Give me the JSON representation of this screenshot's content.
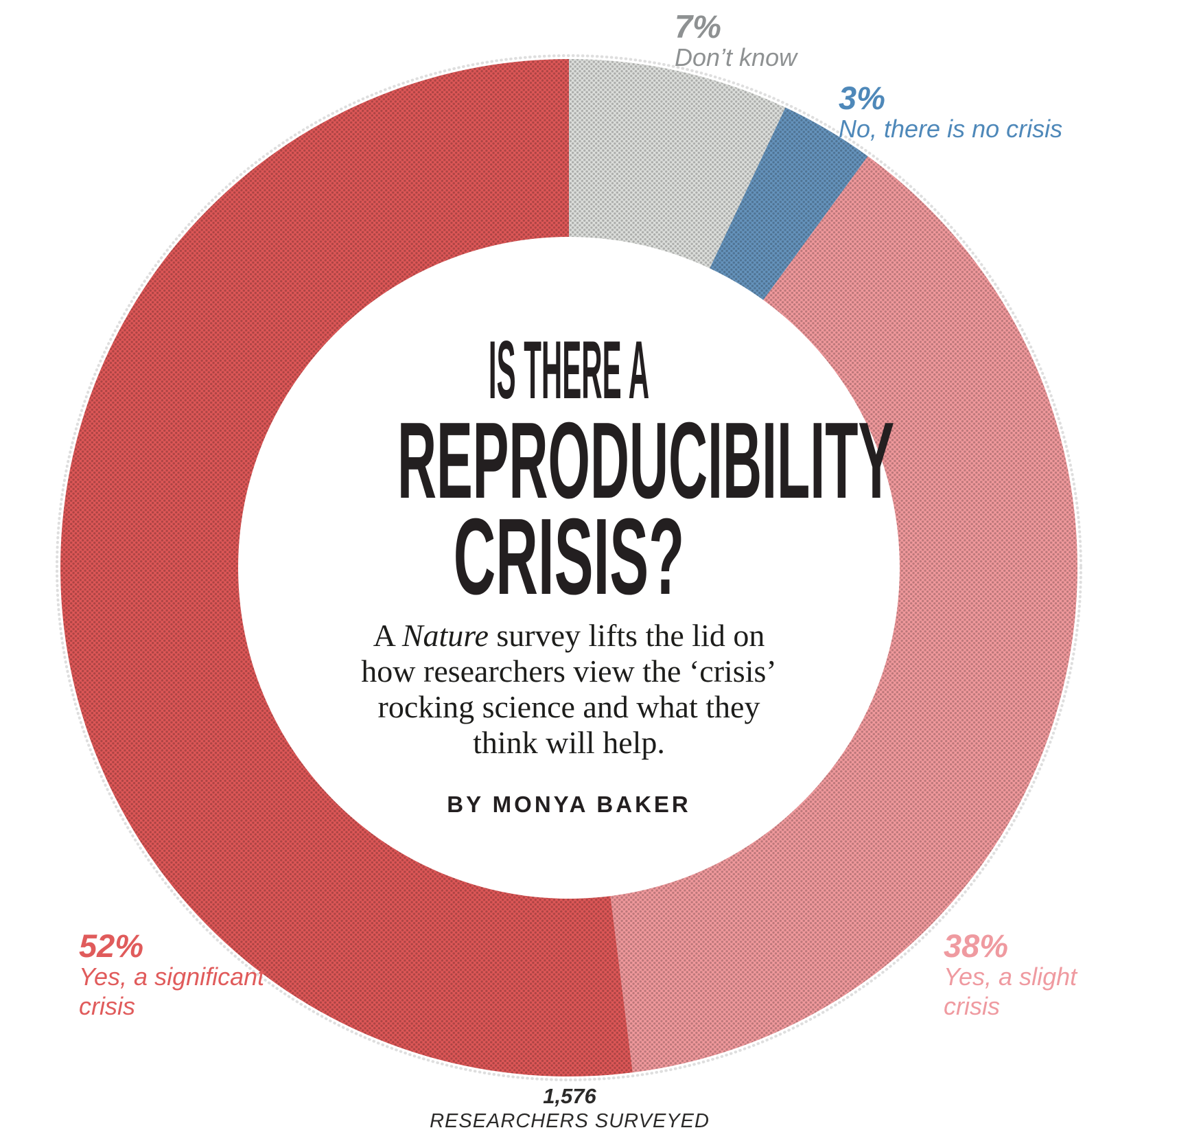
{
  "chart_data": {
    "type": "pie",
    "variant": "donut",
    "title": "IS THERE A REPRODUCIBILITY CRISIS?",
    "start_angle": "12-o-clock",
    "direction": "clockwise",
    "unit": "%",
    "categories": [
      "Don’t know",
      "No, there is no crisis",
      "Yes, a slight crisis",
      "Yes, a significant crisis"
    ],
    "values": [
      7,
      3,
      38,
      52
    ],
    "total_label": "1,576 RESEARCHERS SURVEYED",
    "segments": [
      {
        "id": "dont-know",
        "label": "Don’t know",
        "pct": 7,
        "color": "#dcdedb"
      },
      {
        "id": "no-crisis",
        "label": "No, there is no crisis",
        "pct": 3,
        "color": "#6593bc"
      },
      {
        "id": "slight",
        "label": "Yes, a slight crisis",
        "pct": 38,
        "color": "#f0999c"
      },
      {
        "id": "significant",
        "label": "Yes, a significant crisis",
        "pct": 52,
        "color": "#dd5757"
      }
    ]
  },
  "center": {
    "title_line1": "IS THERE A",
    "title_line2": "REPRODUCIBILITY",
    "title_line3": "CRISIS?",
    "sub_l1a": "A ",
    "sub_l1b": "Nature",
    "sub_l1c": " survey lifts the lid on",
    "sub_l2": "how researchers view the ‘crisis’",
    "sub_l3": "rocking science and what they",
    "sub_l4": "think will help.",
    "byline": "BY MONYA BAKER",
    "title_color": "#231f20"
  },
  "callouts": {
    "dont_know": {
      "pct": "7%",
      "label": "Don’t know",
      "color": "#8e9192"
    },
    "no_crisis": {
      "pct": "3%",
      "label": "No, there is no crisis",
      "color": "#4e88b9"
    },
    "slight": {
      "pct": "38%",
      "label_line1": "Yes, a slight",
      "label_line2": "crisis",
      "color": "#ef9aa0"
    },
    "significant": {
      "pct": "52%",
      "label_line1": "Yes, a significant",
      "label_line2": "crisis",
      "color": "#e05b5b"
    }
  },
  "footer": {
    "value": "1,576",
    "label": "RESEARCHERS SURVEYED"
  }
}
